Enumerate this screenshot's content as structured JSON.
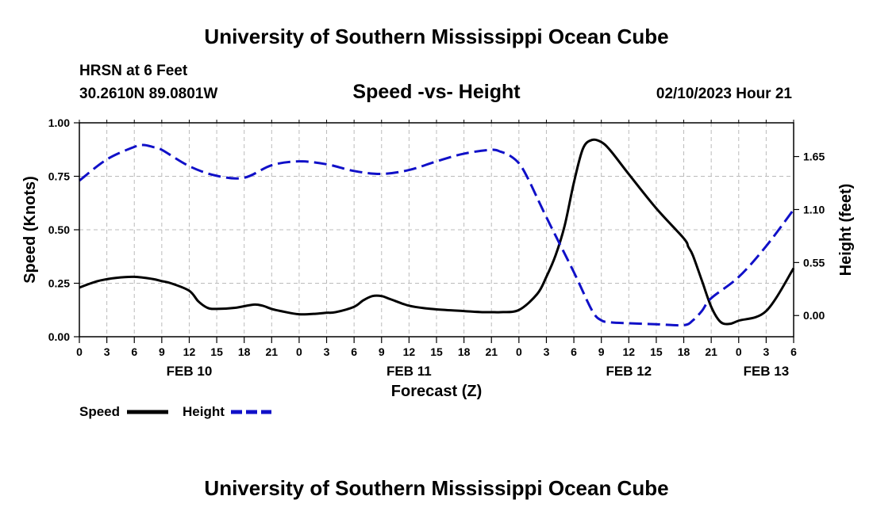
{
  "header": {
    "title_top": "University of Southern Mississippi Ocean Cube",
    "title_bottom": "University of Southern Mississippi Ocean Cube",
    "station": "HRSN at 6 Feet",
    "coords": "30.2610N  89.0801W",
    "datetime": "02/10/2023 Hour 21"
  },
  "colors": {
    "speed": "#000000",
    "height": "#1010c8",
    "grid": "#bbbbbb"
  },
  "chart_data": {
    "type": "line",
    "title": "Speed -vs- Height",
    "xlabel": "Forecast (Z)",
    "ylabel_left": "Speed (Knots)",
    "ylabel_right": "Height (feet)",
    "x_unit": "hours since FEB 10 00Z",
    "xlim": [
      0,
      78
    ],
    "ylim_left": [
      0,
      1.0
    ],
    "ylim_right": [
      -0.22,
      2.0
    ],
    "x_ticks": [
      0,
      3,
      6,
      9,
      12,
      15,
      18,
      21,
      24,
      27,
      30,
      33,
      36,
      39,
      42,
      45,
      48,
      51,
      54,
      57,
      60,
      63,
      66,
      69,
      72,
      75,
      78
    ],
    "x_tick_labels": [
      "0",
      "3",
      "6",
      "9",
      "12",
      "15",
      "18",
      "21",
      "0",
      "3",
      "6",
      "9",
      "12",
      "15",
      "18",
      "21",
      "0",
      "3",
      "6",
      "9",
      "12",
      "15",
      "18",
      "21",
      "0",
      "3",
      "6"
    ],
    "date_labels": [
      {
        "x": 12,
        "label": "FEB 10"
      },
      {
        "x": 36,
        "label": "FEB 11"
      },
      {
        "x": 60,
        "label": "FEB 12"
      },
      {
        "x": 75,
        "label": "FEB 13"
      }
    ],
    "left_ticks": [
      {
        "v": 0.0,
        "label": "0.00"
      },
      {
        "v": 0.25,
        "label": "0.25"
      },
      {
        "v": 0.5,
        "label": "0.50"
      },
      {
        "v": 0.75,
        "label": "0.75"
      },
      {
        "v": 1.0,
        "label": "1.00"
      }
    ],
    "right_ticks": [
      {
        "v": 0.0,
        "label": "0.00"
      },
      {
        "v": 0.55,
        "label": "0.55"
      },
      {
        "v": 1.1,
        "label": "1.10"
      },
      {
        "v": 1.65,
        "label": "1.65"
      }
    ],
    "series": [
      {
        "name": "Speed",
        "axis": "left",
        "x": [
          0,
          2,
          4,
          6,
          8,
          9,
          10,
          12,
          13,
          14,
          15,
          17,
          19,
          20,
          21,
          22,
          24,
          26,
          27,
          28,
          30,
          31,
          32,
          33,
          34,
          36,
          38,
          40,
          42,
          44,
          45,
          46,
          48,
          50,
          51,
          52,
          53,
          54,
          55,
          56,
          57,
          58,
          60,
          63,
          66,
          66.5,
          67,
          68,
          69,
          70,
          71,
          72,
          75,
          78
        ],
        "values": [
          0.23,
          0.26,
          0.275,
          0.28,
          0.27,
          0.26,
          0.25,
          0.215,
          0.165,
          0.135,
          0.13,
          0.135,
          0.15,
          0.145,
          0.13,
          0.12,
          0.105,
          0.108,
          0.112,
          0.115,
          0.14,
          0.17,
          0.19,
          0.19,
          0.175,
          0.145,
          0.132,
          0.125,
          0.12,
          0.115,
          0.115,
          0.115,
          0.125,
          0.2,
          0.28,
          0.38,
          0.52,
          0.72,
          0.88,
          0.92,
          0.91,
          0.87,
          0.76,
          0.6,
          0.46,
          0.42,
          0.38,
          0.26,
          0.14,
          0.07,
          0.06,
          0.075,
          0.12,
          0.32
        ]
      },
      {
        "name": "Height",
        "axis": "right",
        "x": [
          0,
          3,
          6,
          7,
          8,
          9,
          12,
          15,
          18,
          21,
          24,
          27,
          30,
          33,
          36,
          39,
          42,
          45,
          46,
          47,
          48,
          49,
          51,
          54,
          56,
          57,
          58,
          60,
          63,
          66,
          67,
          68,
          69,
          72,
          75,
          78
        ],
        "values": [
          1.4,
          1.62,
          1.75,
          1.77,
          1.75,
          1.72,
          1.55,
          1.45,
          1.43,
          1.56,
          1.6,
          1.57,
          1.5,
          1.47,
          1.51,
          1.6,
          1.68,
          1.72,
          1.7,
          1.66,
          1.58,
          1.42,
          1.02,
          0.45,
          0.05,
          -0.05,
          -0.07,
          -0.08,
          -0.09,
          -0.1,
          -0.05,
          0.05,
          0.18,
          0.4,
          0.72,
          1.1
        ]
      }
    ],
    "legend": [
      {
        "name": "Speed",
        "style": "solid"
      },
      {
        "name": "Height",
        "style": "dashed"
      }
    ]
  }
}
